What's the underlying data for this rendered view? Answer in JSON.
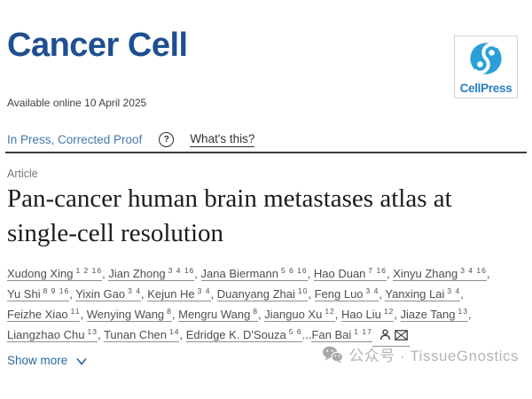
{
  "journal": {
    "name": "Cancer Cell",
    "publisher": "CellPress"
  },
  "availability": "Available online 10 April 2025",
  "status": {
    "label": "In Press, Corrected Proof",
    "help_icon": "?",
    "whats_this": "What's this?"
  },
  "article_type": "Article",
  "title": "Pan-cancer human brain metastases atlas at single-cell resolution",
  "authors": {
    "items": [
      {
        "name": "Xudong Xing",
        "sup": "1 2 16",
        "sep": ", "
      },
      {
        "name": "Jian Zhong",
        "sup": "3 4 16",
        "sep": ", "
      },
      {
        "name": "Jana Biermann",
        "sup": "5 6 16",
        "sep": ", "
      },
      {
        "name": "Hao Duan",
        "sup": "7 16",
        "sep": ", "
      },
      {
        "name": "Xinyu Zhang",
        "sup": "3 4 16",
        "sep": ", "
      },
      {
        "name": "Yu Shi",
        "sup": "8 9 16",
        "sep": ", "
      },
      {
        "name": "Yixin Gao",
        "sup": "3 4",
        "sep": ", "
      },
      {
        "name": "Kejun He",
        "sup": "3 4",
        "sep": ", "
      },
      {
        "name": "Duanyang Zhai",
        "sup": "10",
        "sep": ", "
      },
      {
        "name": "Feng Luo",
        "sup": "3 4",
        "sep": ", "
      },
      {
        "name": "Yanxing Lai",
        "sup": "3 4",
        "sep": ", "
      },
      {
        "name": "Feizhe Xiao",
        "sup": "11",
        "sep": ", "
      },
      {
        "name": "Wenying Wang",
        "sup": "8",
        "sep": ", "
      },
      {
        "name": "Mengru Wang",
        "sup": "8",
        "sep": ", "
      },
      {
        "name": "Jianguo Xu",
        "sup": "12",
        "sep": ", "
      },
      {
        "name": "Hao Liu",
        "sup": "12",
        "sep": ", "
      },
      {
        "name": "Jiaze Tang",
        "sup": "13",
        "sep": ", "
      },
      {
        "name": "Liangzhao Chu",
        "sup": "13",
        "sep": ", "
      },
      {
        "name": "Tunan Chen",
        "sup": "14",
        "sep": ", "
      },
      {
        "name": "Edridge K. D'Souza",
        "sup": "5 6",
        "sep": "..."
      },
      {
        "name": "Fan Bai",
        "sup": "1 17",
        "sep": ""
      }
    ]
  },
  "show_more_label": "Show more",
  "watermark_text": "公众号 · TissueGnostics",
  "icons": {
    "help": "question-mark-circle-icon",
    "author_profile": "person-icon",
    "correspondence": "envelope-icon",
    "show_more": "chevron-down-icon",
    "watermark": "wechat-icon",
    "publisher": "cellpress-swirl-icon"
  },
  "colors": {
    "journal_brand": "#1d4f91",
    "cellpress_blue": "#2a9fd8",
    "cellpress_text": "#2a7fc1",
    "inpress_link": "#4379ad",
    "show_more_link": "#2767a0",
    "author_text": "#4f4f4f",
    "watermark_gray": "#b5b5b5",
    "title_text": "#1c1c1c"
  }
}
